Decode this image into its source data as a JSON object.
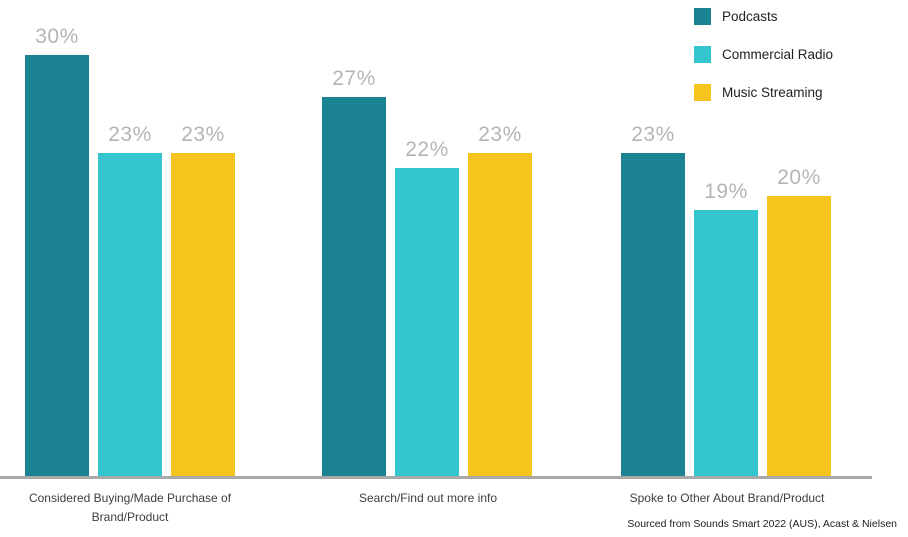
{
  "chart_data": {
    "type": "bar",
    "title": "",
    "xlabel": "",
    "ylabel": "",
    "categories": [
      "Considered Buying/Made Purchase of Brand/Product",
      "Search/Find out more info",
      "Spoke to Other About Brand/Product"
    ],
    "series": [
      {
        "name": "Podcasts",
        "color": "#1A8290",
        "values": [
          30,
          27,
          23
        ]
      },
      {
        "name": "Commercial Radio",
        "color": "#33C6CE",
        "values": [
          23,
          22,
          19
        ]
      },
      {
        "name": "Music Streaming",
        "color": "#F5C51D",
        "values": [
          23,
          23,
          20
        ]
      }
    ],
    "value_suffix": "%",
    "ylim": [
      0,
      30
    ],
    "grid": false,
    "legend_position": "top-right",
    "data_labels": true
  },
  "source_note": "Sourced from Sounds Smart 2022 (AUS), Acast & Nielsen",
  "styles": {
    "value_label_color": "#B5B5B5",
    "axis_line_color": "#A9A9A9",
    "category_label_color": "#3C4043",
    "legend_label_color": "#212121",
    "background_color": "#FFFFFF"
  }
}
